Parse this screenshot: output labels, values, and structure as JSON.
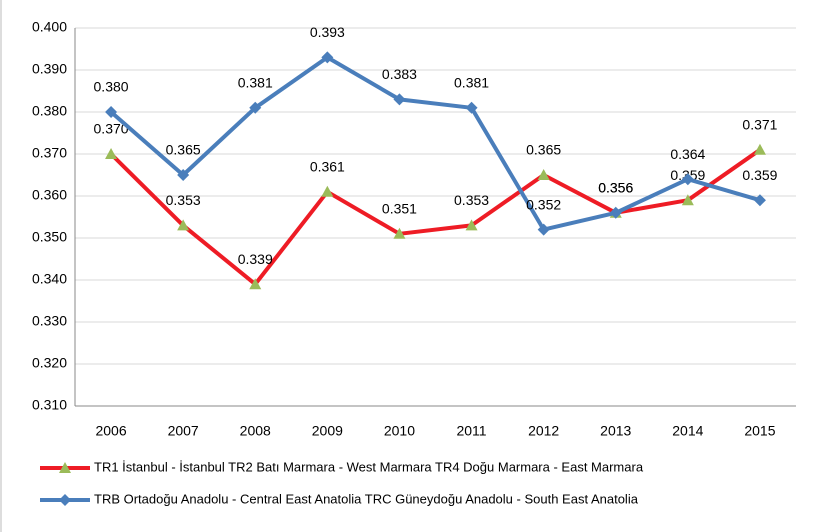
{
  "chart_data": {
    "type": "line",
    "categories": [
      "2006",
      "2007",
      "2008",
      "2009",
      "2010",
      "2011",
      "2012",
      "2013",
      "2014",
      "2015"
    ],
    "series": [
      {
        "name": "TR1 İstanbul - İstanbul TR2 Batı Marmara - West Marmara TR4 Doğu Marmara - East Marmara",
        "color": "#ee1c25",
        "marker": "triangle",
        "marker_color": "#9bbb59",
        "values": [
          0.37,
          0.353,
          0.339,
          0.361,
          0.351,
          0.353,
          0.365,
          0.356,
          0.359,
          0.371
        ],
        "value_labels": [
          "0.370",
          "0.353",
          "0.339",
          "0.361",
          "0.351",
          "0.353",
          "0.365",
          "0.356",
          "0.359",
          "0.371"
        ]
      },
      {
        "name": "TRB Ortadoğu Anadolu - Central East Anatolia TRC Güneydoğu Anadolu - South East Anatolia",
        "color": "#4a7ebb",
        "marker": "diamond",
        "marker_color": "#4a7ebb",
        "values": [
          0.38,
          0.365,
          0.381,
          0.393,
          0.383,
          0.381,
          0.352,
          0.356,
          0.364,
          0.359
        ],
        "value_labels": [
          "0.380",
          "0.365",
          "0.381",
          "0.393",
          "0.383",
          "0.381",
          "0.352",
          "0.356",
          "0.364",
          "0.359"
        ]
      }
    ],
    "ylim": [
      0.31,
      0.4
    ],
    "yticks": [
      {
        "value": 0.31,
        "label": "0.310"
      },
      {
        "value": 0.32,
        "label": "0.320"
      },
      {
        "value": 0.33,
        "label": "0.330"
      },
      {
        "value": 0.34,
        "label": "0.340"
      },
      {
        "value": 0.35,
        "label": "0.350"
      },
      {
        "value": 0.36,
        "label": "0.360"
      },
      {
        "value": 0.37,
        "label": "0.370"
      },
      {
        "value": 0.38,
        "label": "0.380"
      },
      {
        "value": 0.39,
        "label": "0.390"
      },
      {
        "value": 0.4,
        "label": "0.400"
      }
    ],
    "grid": true,
    "legend": "bottom"
  }
}
